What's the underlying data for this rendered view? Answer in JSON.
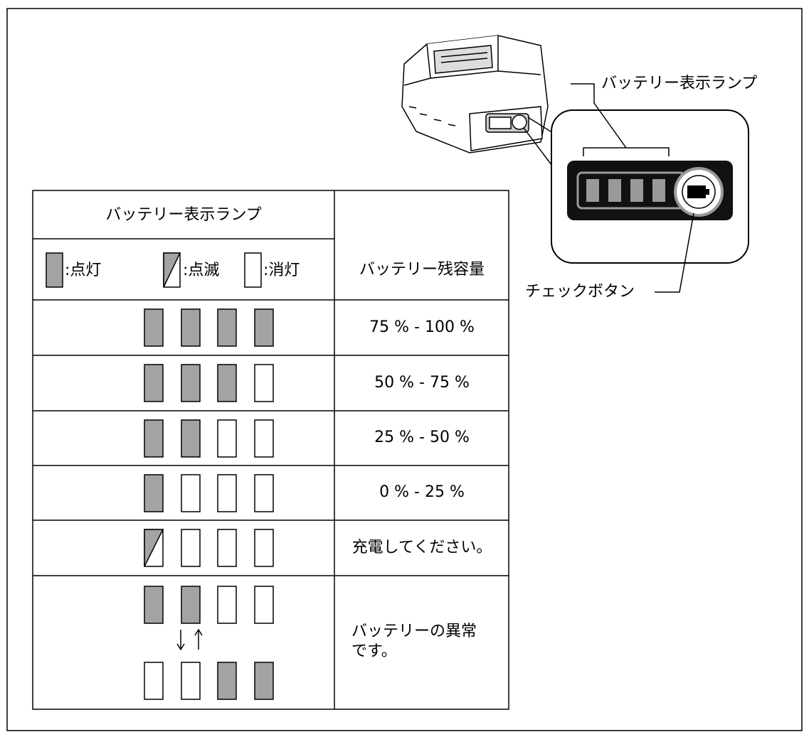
{
  "callouts": {
    "lamp_label": "バッテリー表示ランプ",
    "button_label": "チェックボタン"
  },
  "table": {
    "header": {
      "lamp": "バッテリー表示ランプ",
      "legend": [
        ":点灯",
        ":点滅",
        ":消灯"
      ],
      "capacity": "バッテリー残容量"
    },
    "rows": [
      "75 % - 100 %",
      "50 % - 75 %",
      "25 % - 50 %",
      "0 % - 25 %",
      "充電してください。",
      [
        "バッテリーの異常",
        "です。"
      ]
    ]
  }
}
